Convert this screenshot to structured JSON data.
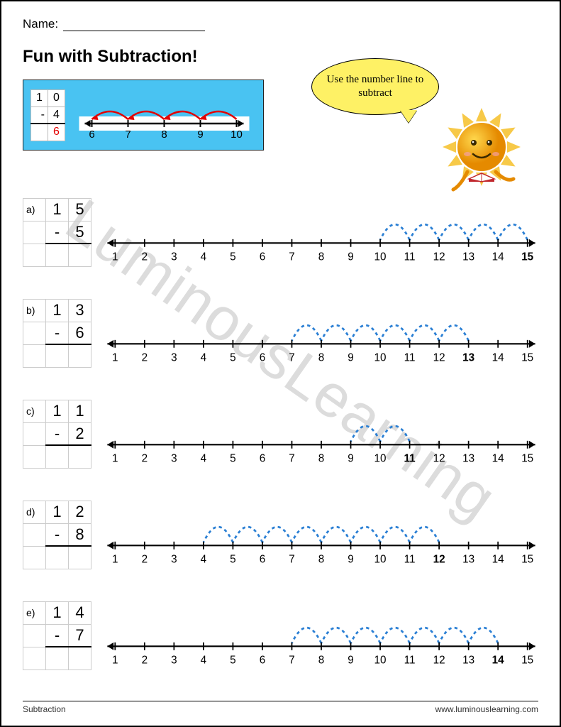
{
  "name_label": "Name:",
  "title": "Fun with Subtraction!",
  "watermark": "LuminousLearning",
  "speech_text": "Use the number line to subtract",
  "example": {
    "top": [
      "1",
      "0"
    ],
    "minus_sign": "-",
    "sub": "4",
    "answer": "6",
    "nl_start": 6,
    "nl_end": 10,
    "hop_from": 10,
    "hop_to": 6,
    "hop_color": "#e30000",
    "tick_color": "#000000"
  },
  "number_line": {
    "start": 1,
    "end": 15,
    "tick_fontsize": 14,
    "line_color": "#000000",
    "hop_color": "#2a7fd4",
    "hop_dash": "4,4",
    "bold_target": true
  },
  "problems": [
    {
      "label": "a)",
      "top": [
        "1",
        "5"
      ],
      "sub": "5",
      "start_num": 15,
      "hops": 5
    },
    {
      "label": "b)",
      "top": [
        "1",
        "3"
      ],
      "sub": "6",
      "start_num": 13,
      "hops": 6
    },
    {
      "label": "c)",
      "top": [
        "1",
        "1"
      ],
      "sub": "2",
      "start_num": 11,
      "hops": 2
    },
    {
      "label": "d)",
      "top": [
        "1",
        "2"
      ],
      "sub": "8",
      "start_num": 12,
      "hops": 8
    },
    {
      "label": "e)",
      "top": [
        "1",
        "4"
      ],
      "sub": "7",
      "start_num": 14,
      "hops": 7
    }
  ],
  "footer_left": "Subtraction",
  "footer_right": "www.luminouslearning.com",
  "colors": {
    "example_bg": "#49c3f2",
    "speech_bg": "#fef165",
    "sun_body": "#f5a623",
    "sun_ray": "#f7c948",
    "hop_blue": "#2a7fd4",
    "answer_red": "#e30000"
  }
}
